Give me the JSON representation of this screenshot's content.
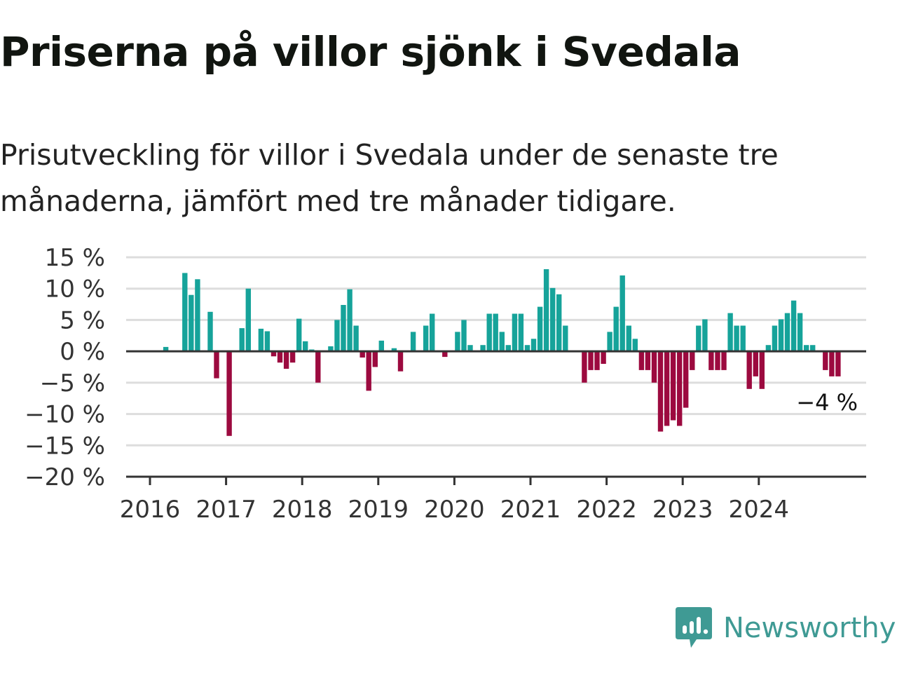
{
  "title": "Priserna på villor sjönk i Svedala",
  "subtitle": "Prisutveckling för villor i Svedala under de senaste tre månaderna, jämfört med tre månader tidigare.",
  "brand": "Newsworthy",
  "colors": {
    "positive": "#16a39a",
    "negative": "#9c0a3f",
    "grid": "#dddddd",
    "axis": "#333333",
    "brand": "#3f9a94"
  },
  "chart_data": {
    "type": "bar",
    "ylim": [
      -20,
      15
    ],
    "yticks": [
      15,
      10,
      5,
      0,
      -5,
      -10,
      -15,
      -20
    ],
    "ytick_labels": [
      "15 %",
      "10 %",
      "5 %",
      "0 %",
      "−5 %",
      "−10 %",
      "−15 %",
      "−20 %"
    ],
    "xticks": [
      "2016",
      "2017",
      "2018",
      "2019",
      "2020",
      "2021",
      "2022",
      "2023",
      "2024"
    ],
    "start": "2016-01",
    "grid": true,
    "legend": "none",
    "end_label": "−4 %",
    "values": [
      0,
      0,
      0.7,
      0,
      0,
      12.5,
      9,
      11.5,
      0,
      6.3,
      -4.3,
      0,
      -13.5,
      0,
      3.7,
      10,
      0,
      3.6,
      3.2,
      -0.8,
      -1.8,
      -2.8,
      -1.8,
      5.2,
      1.6,
      0.3,
      -5,
      0,
      0.8,
      5,
      7.4,
      9.9,
      4.1,
      -1,
      -6.3,
      -2.5,
      1.7,
      0,
      0.5,
      -3.2,
      0,
      3.1,
      0,
      4.1,
      6,
      0,
      -0.9,
      0,
      3.1,
      5,
      1,
      0,
      1,
      6,
      6,
      3.1,
      1,
      6,
      6,
      1,
      2,
      7.1,
      13.1,
      10.1,
      9.1,
      4.1,
      0,
      0,
      -5,
      -3,
      -3,
      -2,
      3.1,
      7.1,
      12.1,
      4.1,
      2,
      -3,
      -3,
      -5,
      -12.8,
      -11.9,
      -11,
      -11.9,
      -9,
      -3,
      4.1,
      5.1,
      -3,
      -3,
      -3,
      6.1,
      4.1,
      4.1,
      -6,
      -4,
      -6,
      1,
      4.1,
      5.1,
      6.1,
      8.1,
      6.1,
      1,
      1,
      0,
      -3,
      -4,
      -4
    ]
  }
}
